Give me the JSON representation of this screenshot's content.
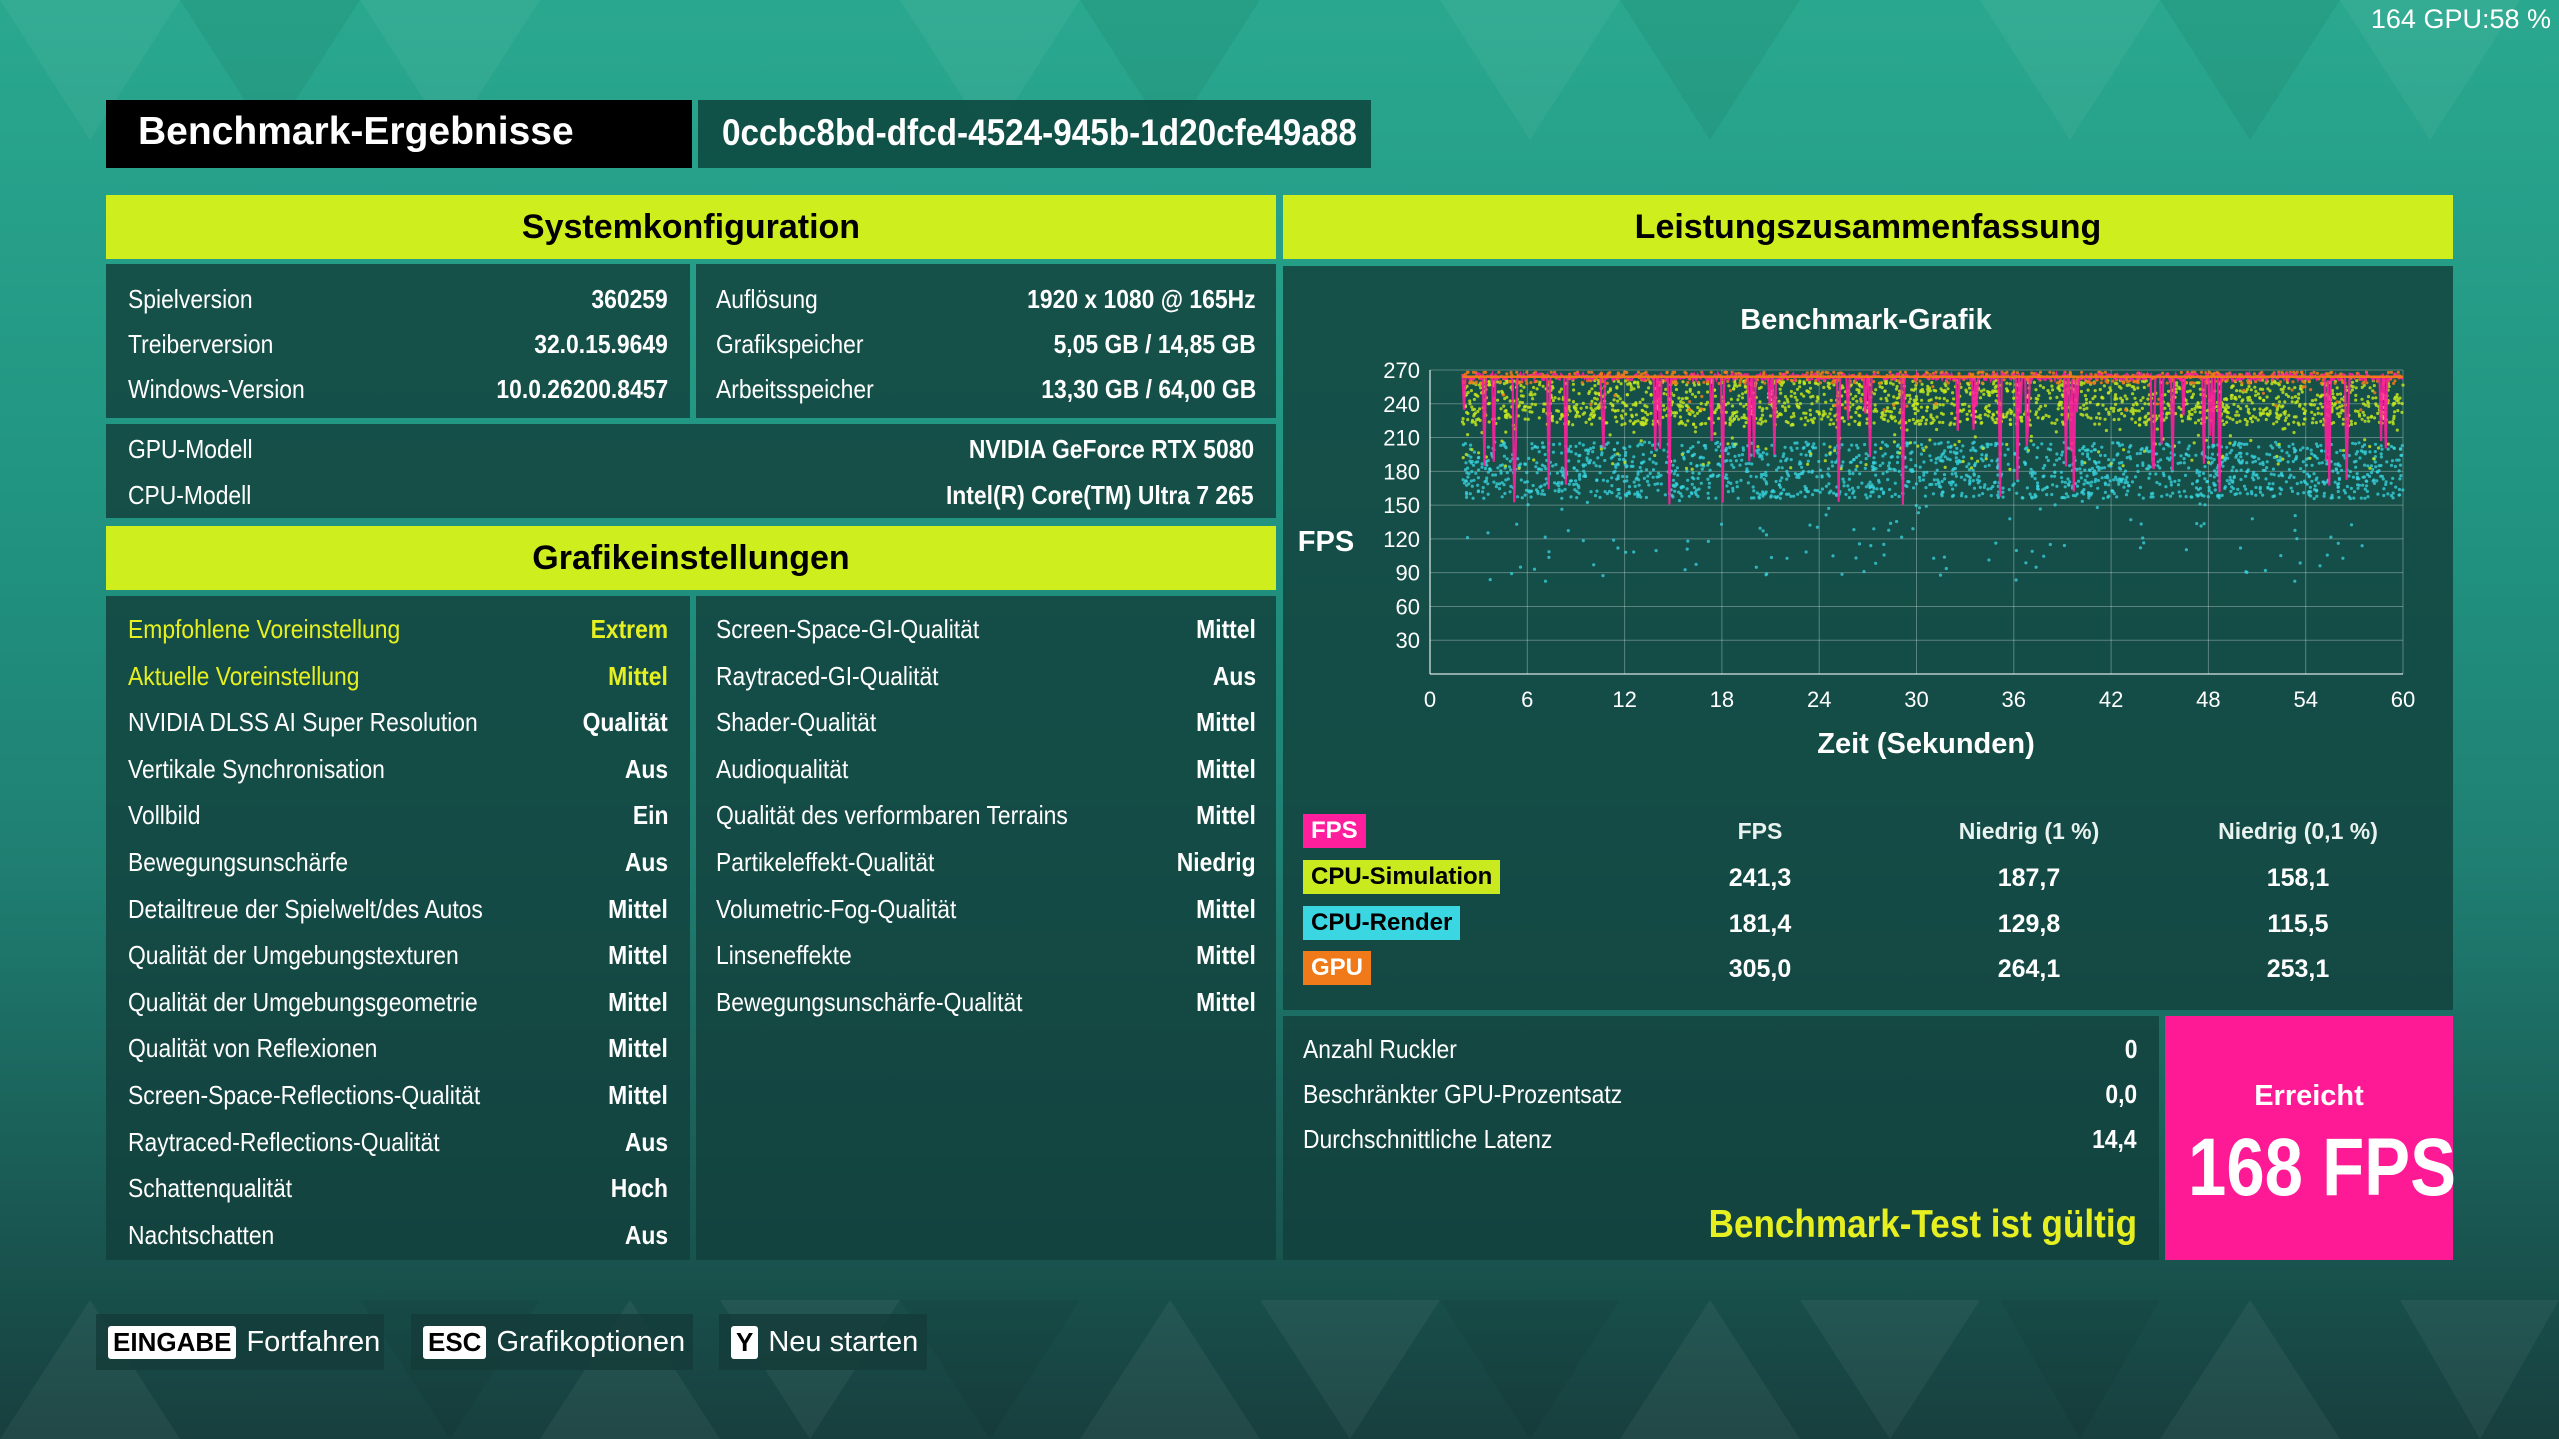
{
  "overlay": {
    "text": "164 GPU:58 %"
  },
  "header": {
    "title": "Benchmark-Ergebnisse",
    "run_id": "0ccbc8bd-dfcd-4524-945b-1d20cfe49a88"
  },
  "sections": {
    "system": "Systemkonfiguration",
    "graphics": "Grafikeinstellungen",
    "performance": "Leistungszusammenfassung"
  },
  "system_left": [
    {
      "label": "Spielversion",
      "value": "360259"
    },
    {
      "label": "Treiberversion",
      "value": "32.0.15.9649"
    },
    {
      "label": "Windows-Version",
      "value": "10.0.26200.8457"
    }
  ],
  "system_right": [
    {
      "label": "Auflösung",
      "value": "1920 x 1080 @ 165Hz"
    },
    {
      "label": "Grafikspeicher",
      "value": "5,05 GB / 14,85 GB"
    },
    {
      "label": "Arbeitsspeicher",
      "value": "13,30 GB / 64,00 GB"
    }
  ],
  "hardware": [
    {
      "label": "GPU-Modell",
      "value": "NVIDIA GeForce RTX 5080"
    },
    {
      "label": "CPU-Modell",
      "value": "Intel(R) Core(TM) Ultra 7 265"
    }
  ],
  "graphics_left": [
    {
      "label": "Empfohlene Voreinstellung",
      "value": "Extrem",
      "highlight": true
    },
    {
      "label": "Aktuelle Voreinstellung",
      "value": "Mittel",
      "highlight": true
    },
    {
      "label": "NVIDIA DLSS AI Super Resolution",
      "value": "Qualität"
    },
    {
      "label": "Vertikale Synchronisation",
      "value": "Aus"
    },
    {
      "label": "Vollbild",
      "value": "Ein"
    },
    {
      "label": "Bewegungsunschärfe",
      "value": "Aus"
    },
    {
      "label": "Detailtreue der Spielwelt/des Autos",
      "value": "Mittel"
    },
    {
      "label": "Qualität der Umgebungstexturen",
      "value": "Mittel"
    },
    {
      "label": "Qualität der Umgebungsgeometrie",
      "value": "Mittel"
    },
    {
      "label": "Qualität von Reflexionen",
      "value": "Mittel"
    },
    {
      "label": "Screen-Space-Reflections-Qualität",
      "value": "Mittel"
    },
    {
      "label": "Raytraced-Reflections-Qualität",
      "value": "Aus"
    },
    {
      "label": "Schattenqualität",
      "value": "Hoch"
    },
    {
      "label": "Nachtschatten",
      "value": "Aus"
    }
  ],
  "graphics_right": [
    {
      "label": "Screen-Space-GI-Qualität",
      "value": "Mittel"
    },
    {
      "label": "Raytraced-GI-Qualität",
      "value": "Aus"
    },
    {
      "label": "Shader-Qualität",
      "value": "Mittel"
    },
    {
      "label": "Audioqualität",
      "value": "Mittel"
    },
    {
      "label": "Qualität des verformbaren Terrains",
      "value": "Mittel"
    },
    {
      "label": "Partikeleffekt-Qualität",
      "value": "Niedrig"
    },
    {
      "label": "Volumetric-Fog-Qualität",
      "value": "Mittel"
    },
    {
      "label": "Linseneffekte",
      "value": "Mittel"
    },
    {
      "label": "Bewegungsunschärfe-Qualität",
      "value": "Mittel"
    }
  ],
  "chart_data": {
    "type": "scatter",
    "title": "Benchmark-Grafik",
    "xlabel": "Zeit (Sekunden)",
    "ylabel": "FPS",
    "xlim": [
      0,
      60
    ],
    "ylim": [
      0,
      270
    ],
    "xticks": [
      0,
      6,
      12,
      18,
      24,
      30,
      36,
      42,
      48,
      54,
      60
    ],
    "yticks": [
      30,
      60,
      90,
      120,
      150,
      180,
      210,
      240,
      270
    ],
    "grid": true,
    "series": [
      {
        "name": "GPU",
        "color": "#f07a1a",
        "approx_level": 264
      },
      {
        "name": "CPU-Simulation",
        "color": "#c8ea1e",
        "approx_level": 241
      },
      {
        "name": "CPU-Render",
        "color": "#3ad6e2",
        "approx_level": 181
      },
      {
        "name": "FPS",
        "color": "#ff1f9d",
        "approx_level": 168
      }
    ]
  },
  "stats": {
    "legend_label": "FPS",
    "columns": [
      "FPS",
      "Niedrig (1 %)",
      "Niedrig (0,1 %)"
    ],
    "rows": [
      {
        "name": "CPU-Simulation",
        "color": "#c8ea1e",
        "values": [
          "241,3",
          "187,7",
          "158,1"
        ]
      },
      {
        "name": "CPU-Render",
        "color": "#3ad6e2",
        "values": [
          "181,4",
          "129,8",
          "115,5"
        ]
      },
      {
        "name": "GPU",
        "color": "#f07a1a",
        "values": [
          "305,0",
          "264,1",
          "253,1"
        ]
      }
    ]
  },
  "summary": [
    {
      "label": "Anzahl Ruckler",
      "value": "0"
    },
    {
      "label": "Beschränkter GPU-Prozentsatz",
      "value": "0,0"
    },
    {
      "label": "Durchschnittliche Latenz",
      "value": "14,4"
    }
  ],
  "validity": "Benchmark-Test ist gültig",
  "result": {
    "label": "Erreicht",
    "value": "168 FPS"
  },
  "colors": {
    "accent": "#cfee1e",
    "result_bg": "#ff1a95",
    "valid_text": "#e6ef20"
  },
  "footer": [
    {
      "key": "EINGABE",
      "label": "Fortfahren"
    },
    {
      "key": "ESC",
      "label": "Grafikoptionen"
    },
    {
      "key": "Y",
      "label": "Neu starten"
    }
  ]
}
